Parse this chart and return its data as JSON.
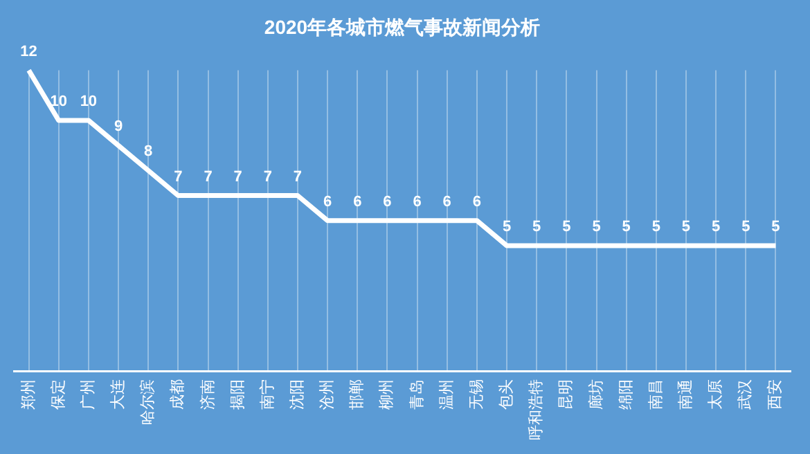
{
  "chart_data": {
    "type": "line",
    "title": "2020年各城市燃气事故新闻分析",
    "categories": [
      "郑州",
      "保定",
      "广州",
      "大连",
      "哈尔滨",
      "成都",
      "济南",
      "揭阳",
      "南宁",
      "沈阳",
      "沧州",
      "邯郸",
      "柳州",
      "青岛",
      "温州",
      "无锡",
      "包头",
      "呼和浩特",
      "昆明",
      "廊坊",
      "绵阳",
      "南昌",
      "南通",
      "太原",
      "武汉",
      "西安"
    ],
    "series": [
      {
        "color": "#ffffff",
        "values": [
          12,
          10,
          10,
          9,
          8,
          7,
          7,
          7,
          7,
          7,
          6,
          6,
          6,
          6,
          6,
          6,
          5,
          5,
          5,
          5,
          5,
          5,
          5,
          5,
          5,
          5
        ]
      }
    ],
    "data_labels": true,
    "grid": "x",
    "marker": "none",
    "line_style": "solid",
    "legend": false,
    "tick_labels": "x"
  }
}
